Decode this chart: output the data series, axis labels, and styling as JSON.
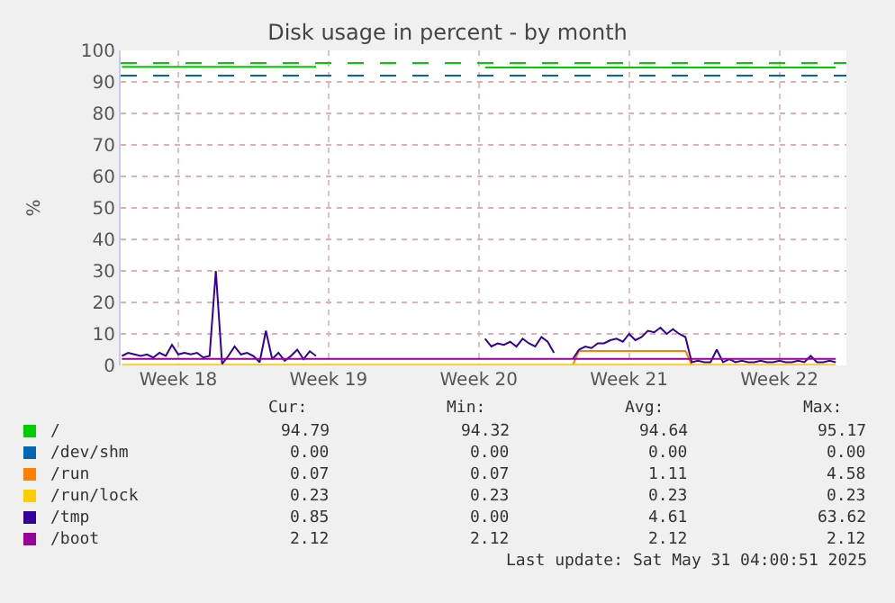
{
  "chart_data": {
    "type": "line",
    "title": "Disk usage in percent - by month",
    "ylabel": "%",
    "categories": [
      null,
      null,
      null,
      null,
      null,
      null,
      null,
      null,
      null,
      "Week 18",
      null,
      null,
      null,
      null,
      null,
      null,
      null,
      null,
      null,
      null,
      null,
      null,
      null,
      null,
      null,
      null,
      null,
      null,
      null,
      null,
      null,
      null,
      null,
      "Week 19",
      null,
      null,
      null,
      null,
      null,
      null,
      null,
      null,
      null,
      null,
      null,
      null,
      null,
      null,
      null,
      null,
      null,
      null,
      null,
      null,
      null,
      null,
      null,
      "Week 20",
      null,
      null,
      null,
      null,
      null,
      null,
      null,
      null,
      null,
      null,
      null,
      null,
      null,
      null,
      null,
      null,
      null,
      null,
      null,
      null,
      null,
      null,
      null,
      "Week 21",
      null,
      null,
      null,
      null,
      null,
      null,
      null,
      null,
      null,
      null,
      null,
      null,
      null,
      null,
      null,
      null,
      null,
      null,
      null,
      null,
      null,
      null,
      null,
      "Week 22",
      null,
      null,
      null,
      null,
      null,
      null,
      null,
      null,
      null,
      null
    ],
    "legend": "bottom",
    "ylim": [
      0,
      100
    ],
    "yticks": [
      0,
      10,
      20,
      30,
      40,
      50,
      60,
      70,
      80,
      90,
      100
    ],
    "grid": true,
    "series": [
      {
        "name": "/",
        "color": "#00cc00",
        "values": [
          94.8,
          94.8,
          94.8,
          94.8,
          94.8,
          94.8,
          94.8,
          94.8,
          94.8,
          94.8,
          94.8,
          94.8,
          94.8,
          94.8,
          94.8,
          94.8,
          94.8,
          94.8,
          94.8,
          94.8,
          94.8,
          94.8,
          94.8,
          94.8,
          94.8,
          94.8,
          94.8,
          94.8,
          94.8,
          94.8,
          94.8,
          94.8,
          null,
          null,
          null,
          null,
          null,
          null,
          null,
          null,
          null,
          null,
          null,
          null,
          null,
          null,
          null,
          null,
          null,
          null,
          null,
          null,
          null,
          null,
          null,
          null,
          null,
          null,
          94.6,
          94.6,
          94.6,
          94.6,
          94.6,
          94.6,
          94.6,
          94.6,
          94.6,
          94.6,
          94.6,
          94.6,
          94.6,
          94.6,
          94.6,
          94.6,
          94.6,
          94.6,
          94.6,
          94.6,
          94.6,
          94.6,
          94.6,
          94.6,
          94.6,
          94.6,
          94.6,
          94.6,
          94.6,
          94.6,
          94.6,
          94.6,
          94.6,
          94.6,
          94.6,
          94.6,
          94.6,
          94.6,
          94.6,
          94.6,
          94.6,
          94.6,
          94.6,
          94.6,
          94.6,
          94.6,
          94.6,
          94.6,
          94.6,
          94.6,
          94.6,
          94.6,
          94.6,
          94.6,
          94.6,
          94.6,
          94.6,
          null
        ]
      },
      {
        "name": "/dev/shm",
        "color": "#0066b3",
        "values": [
          null,
          null,
          null,
          null,
          null,
          null,
          null,
          null,
          null,
          null,
          null,
          null,
          null,
          null,
          null,
          null,
          null,
          null,
          null,
          null,
          null,
          null,
          null,
          null,
          null,
          null,
          null,
          null,
          null,
          null,
          null,
          null,
          null,
          null,
          null,
          null,
          null,
          null,
          null,
          null,
          null,
          null,
          null,
          null,
          null,
          null,
          null,
          null,
          null,
          null,
          null,
          null,
          null,
          null,
          null,
          null,
          null,
          null,
          null,
          null,
          null,
          null,
          null,
          null,
          null,
          null,
          null,
          null,
          null,
          null,
          null,
          null,
          null,
          null,
          null,
          null,
          null,
          null,
          null,
          null,
          null,
          null,
          null,
          null,
          null,
          null,
          null,
          null,
          null,
          null,
          null,
          null,
          null,
          null,
          null,
          null,
          null,
          null,
          null,
          null,
          null,
          null,
          null,
          null,
          null,
          null,
          null,
          null,
          null,
          null,
          null,
          null,
          null,
          null,
          null,
          null
        ]
      },
      {
        "name": "/run",
        "color": "#ff8000",
        "values": [
          null,
          null,
          null,
          null,
          null,
          null,
          null,
          null,
          null,
          null,
          null,
          null,
          null,
          null,
          null,
          null,
          null,
          null,
          null,
          null,
          null,
          null,
          null,
          null,
          null,
          null,
          null,
          null,
          null,
          null,
          null,
          null,
          null,
          null,
          null,
          null,
          null,
          null,
          null,
          null,
          null,
          null,
          null,
          null,
          null,
          null,
          null,
          null,
          null,
          null,
          null,
          null,
          null,
          null,
          null,
          null,
          null,
          null,
          null,
          null,
          null,
          null,
          null,
          null,
          null,
          null,
          null,
          null,
          null,
          null,
          null,
          null,
          0.1,
          4.6,
          4.6,
          4.6,
          4.6,
          4.6,
          4.6,
          4.6,
          4.6,
          4.6,
          4.6,
          4.6,
          4.6,
          4.6,
          4.6,
          4.6,
          4.6,
          4.6,
          4.6,
          0.1,
          null,
          null,
          null,
          null,
          null,
          null,
          null,
          null,
          null,
          null,
          null,
          null,
          null,
          null,
          null,
          null,
          null,
          null,
          null,
          null,
          null,
          null,
          null,
          null
        ]
      },
      {
        "name": "/run/lock",
        "color": "#ffcc00",
        "values": [
          0.2,
          0.2,
          0.2,
          0.2,
          0.2,
          0.2,
          0.2,
          0.2,
          0.2,
          0.2,
          0.2,
          0.2,
          0.2,
          0.2,
          0.2,
          0.2,
          0.2,
          0.2,
          0.2,
          0.2,
          0.2,
          0.2,
          0.2,
          0.2,
          0.2,
          0.2,
          0.2,
          0.2,
          0.2,
          0.2,
          0.2,
          0.2,
          0.2,
          0.2,
          0.2,
          0.2,
          0.2,
          0.2,
          0.2,
          0.2,
          0.2,
          0.2,
          0.2,
          0.2,
          0.2,
          0.2,
          0.2,
          0.2,
          0.2,
          0.2,
          0.2,
          0.2,
          0.2,
          0.2,
          0.2,
          0.2,
          0.2,
          0.2,
          0.2,
          0.2,
          0.2,
          0.2,
          0.2,
          0.2,
          0.2,
          0.2,
          0.2,
          0.2,
          0.2,
          0.2,
          0.2,
          0.2,
          0.2,
          0.2,
          0.2,
          0.2,
          0.2,
          0.2,
          0.2,
          0.2,
          0.2,
          0.2,
          0.2,
          0.2,
          0.2,
          0.2,
          0.2,
          0.2,
          0.2,
          0.2,
          0.2,
          0.2,
          0.2,
          0.2,
          0.2,
          0.2,
          0.2,
          0.2,
          0.2,
          0.2,
          0.2,
          0.2,
          0.2,
          0.2,
          0.2,
          0.2,
          0.2,
          0.2,
          0.2,
          0.2,
          0.2,
          0.2,
          0.2,
          0.2,
          0.2,
          null
        ]
      },
      {
        "name": "/tmp",
        "color": "#330099",
        "values": [
          3,
          4,
          3.5,
          3,
          3.5,
          2.5,
          4,
          3,
          6.5,
          3.5,
          4,
          3.5,
          4,
          2.5,
          3,
          30,
          0.5,
          3,
          6,
          3.5,
          4,
          3,
          1,
          11,
          2,
          4,
          1.5,
          3,
          5,
          2,
          4.5,
          3,
          null,
          null,
          null,
          null,
          null,
          null,
          null,
          null,
          null,
          null,
          null,
          null,
          null,
          null,
          null,
          null,
          null,
          null,
          null,
          null,
          null,
          null,
          null,
          null,
          null,
          null,
          8.5,
          6,
          7,
          6.5,
          7.5,
          6,
          8.5,
          7,
          6,
          9,
          7.5,
          4,
          null,
          null,
          2,
          5,
          6,
          5.5,
          7,
          7,
          8,
          8.5,
          7.5,
          10,
          8,
          9,
          11,
          10.5,
          12,
          10,
          11.5,
          10,
          9,
          1,
          1.5,
          1,
          1,
          5,
          1,
          2,
          1,
          1.5,
          1,
          1,
          1.5,
          1,
          1,
          1.5,
          1,
          1,
          1.5,
          1,
          3,
          1,
          1,
          1.5,
          1,
          null
        ]
      },
      {
        "name": "/boot",
        "color": "#990099",
        "values": [
          2.1,
          2.1,
          2.1,
          2.1,
          2.1,
          2.1,
          2.1,
          2.1,
          2.1,
          2.1,
          2.1,
          2.1,
          2.1,
          2.1,
          2.1,
          2.1,
          2.1,
          2.1,
          2.1,
          2.1,
          2.1,
          2.1,
          2.1,
          2.1,
          2.1,
          2.1,
          2.1,
          2.1,
          2.1,
          2.1,
          2.1,
          2.1,
          2.1,
          2.1,
          2.1,
          2.1,
          2.1,
          2.1,
          2.1,
          2.1,
          2.1,
          2.1,
          2.1,
          2.1,
          2.1,
          2.1,
          2.1,
          2.1,
          2.1,
          2.1,
          2.1,
          2.1,
          2.1,
          2.1,
          2.1,
          2.1,
          2.1,
          2.1,
          2.1,
          2.1,
          2.1,
          2.1,
          2.1,
          2.1,
          2.1,
          2.1,
          2.1,
          2.1,
          2.1,
          2.1,
          2.1,
          2.1,
          2.1,
          2.1,
          2.1,
          2.1,
          2.1,
          2.1,
          2.1,
          2.1,
          2.1,
          2.1,
          2.1,
          2.1,
          2.1,
          2.1,
          2.1,
          2.1,
          2.1,
          2.1,
          2.1,
          2.1,
          2.1,
          2.1,
          2.1,
          2.1,
          2.1,
          2.1,
          2.1,
          2.1,
          2.1,
          2.1,
          2.1,
          2.1,
          2.1,
          2.1,
          2.1,
          2.1,
          2.1,
          2.1,
          2.1,
          2.1,
          2.1,
          2.1,
          2.1,
          null
        ]
      }
    ],
    "ref_lines": [
      {
        "axis": "y",
        "value": 96,
        "color": "#00cc00",
        "line_style": "dashed"
      },
      {
        "axis": "y",
        "value": 92,
        "color": "#0066b3",
        "line_style": "dashed"
      }
    ],
    "annotations": [
      "Cur:",
      "Min:",
      "Avg:",
      "Max:",
      "94.79",
      "94.32",
      "94.64",
      "95.17",
      "0.00",
      "0.00",
      "0.00",
      "0.00",
      "0.07",
      "0.07",
      "1.11",
      "4.58",
      "0.23",
      "0.23",
      "0.23",
      "0.23",
      "0.85",
      "0.00",
      "4.61",
      "63.62",
      "2.12",
      "2.12",
      "2.12",
      "2.12",
      "Last update: Sat May 31 04:00:51 2025"
    ]
  }
}
